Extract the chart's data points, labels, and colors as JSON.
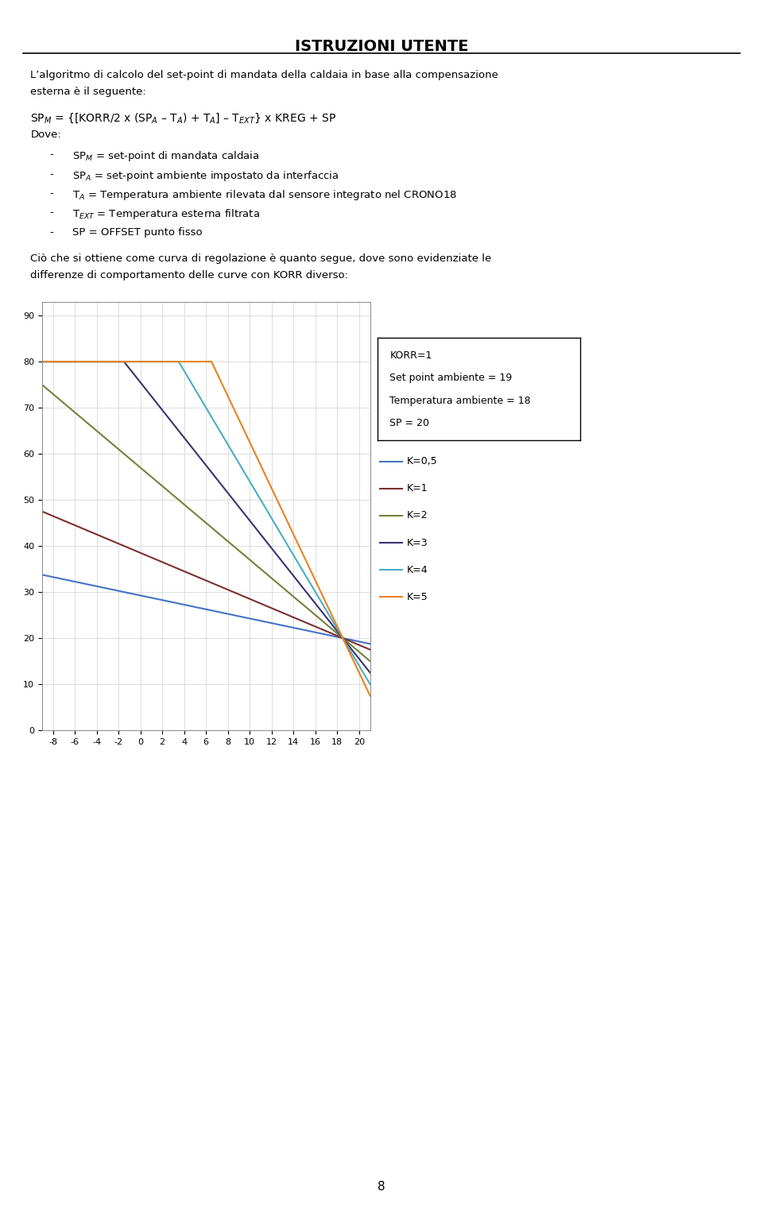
{
  "title": "ISTRUZIONI UTENTE",
  "header_text1": "L’algoritmo di calcolo del set-point di mandata della caldaia in base alla compensazione esterna è il seguente:",
  "formula_text": "SP$_M$ = {[KORR/2 x (SP$_A$ – T$_A$) + T$_A$] – T$_{EXT}$} x KREG + SP",
  "dove_text": "Dove:",
  "bullet_items": [
    "SP$_M$ = set-point di mandata caldaia",
    "SP$_A$ = set-point ambiente impostato da interfaccia",
    "T$_A$ = Temperatura ambiente rilevata dal sensore integrato nel CRONO18",
    "T$_{EXT}$ = Temperatura esterna filtrata",
    "SP = OFFSET punto fisso"
  ],
  "paragraph_line1": "Ciò che si ottiene come curva di regolazione è quanto segue, dove sono evidenziate le",
  "paragraph_line2": "differenze di comportamento delle curve con KORR diverso:",
  "annotation_lines": [
    "KORR=1",
    "Set point ambiente = 19",
    "Temperatura ambiente = 18",
    "SP = 20"
  ],
  "x_ticks": [
    -8,
    -6,
    -4,
    -2,
    0,
    2,
    4,
    6,
    8,
    10,
    12,
    14,
    16,
    18,
    20
  ],
  "y_ticks": [
    0,
    10,
    20,
    30,
    40,
    50,
    60,
    70,
    80,
    90
  ],
  "ylim": [
    0,
    93
  ],
  "xlim": [
    -9,
    21
  ],
  "KORR": 1,
  "SP_A": 19,
  "T_A": 18,
  "SP": 20,
  "KREG_values": [
    0.5,
    1,
    2,
    3,
    4,
    5
  ],
  "line_colors": [
    "#4472C4",
    "#7B3030",
    "#70843A",
    "#3C3270",
    "#4BACC6",
    "#E8821E"
  ],
  "line_labels": [
    "K=0,5",
    "K=1",
    "K=2",
    "K=3",
    "K=4",
    "K=5"
  ],
  "max_sp": 80,
  "background_color": "#ffffff",
  "page_number": "8"
}
